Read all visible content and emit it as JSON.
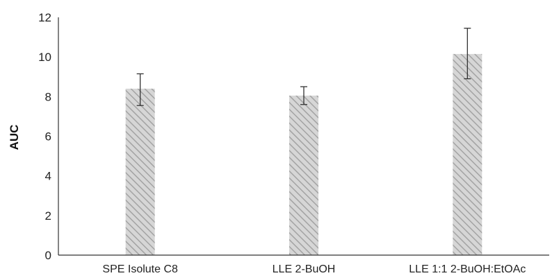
{
  "chart_data": {
    "type": "bar",
    "title": "",
    "xlabel": "",
    "ylabel": "AUC",
    "ylim": [
      0,
      12
    ],
    "yticks": [
      0,
      2,
      4,
      6,
      8,
      10,
      12
    ],
    "grid": false,
    "legend": "none",
    "categories": [
      "SPE Isolute C8",
      "LLE 2-BuOH",
      "LLE 1:1 2-BuOH:EtOAc"
    ],
    "values": [
      8.4,
      8.05,
      10.15
    ],
    "error_low": [
      7.55,
      7.6,
      8.9
    ],
    "error_high": [
      9.15,
      8.5,
      11.45
    ],
    "bar_fill": "#d6d6d6",
    "bar_hatch": "#a3a3a3",
    "axis_color": "#333333",
    "error_color": "#333333"
  }
}
